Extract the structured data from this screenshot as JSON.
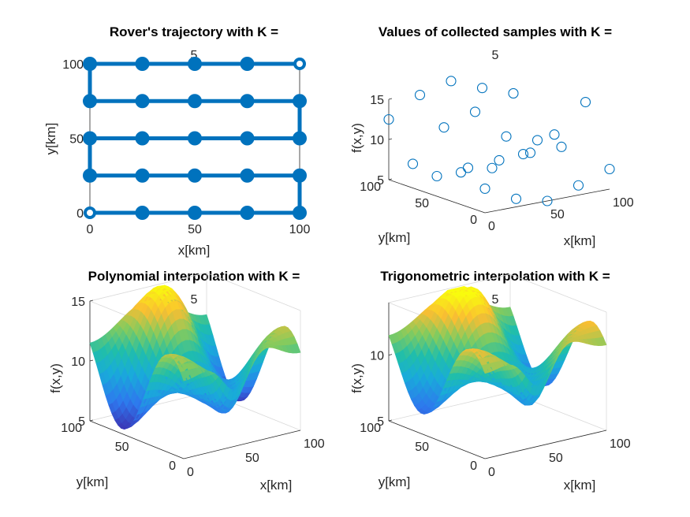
{
  "colors": {
    "series": "#0072BD",
    "surface_low": "#3e26a8",
    "surface_mid": "#20b2aa",
    "surface_high": "#f9fb0e",
    "axis": "#262626",
    "box": "#d9d9d9"
  },
  "chart_data": [
    {
      "type": "line",
      "title": [
        "Rover's trajectory with K =",
        "5"
      ],
      "xlabel": "x[km]",
      "ylabel": "y[km]",
      "xlim": [
        0,
        100
      ],
      "ylim": [
        0,
        100
      ],
      "xticks": [
        "0",
        "50",
        "100"
      ],
      "yticks": [
        "0",
        "50",
        "100"
      ],
      "path": [
        [
          0,
          0
        ],
        [
          25,
          0
        ],
        [
          50,
          0
        ],
        [
          75,
          0
        ],
        [
          100,
          0
        ],
        [
          100,
          25
        ],
        [
          75,
          25
        ],
        [
          50,
          25
        ],
        [
          25,
          25
        ],
        [
          0,
          25
        ],
        [
          0,
          50
        ],
        [
          25,
          50
        ],
        [
          50,
          50
        ],
        [
          75,
          50
        ],
        [
          100,
          50
        ],
        [
          100,
          75
        ],
        [
          75,
          75
        ],
        [
          50,
          75
        ],
        [
          25,
          75
        ],
        [
          0,
          75
        ],
        [
          0,
          100
        ],
        [
          25,
          100
        ],
        [
          50,
          100
        ],
        [
          75,
          100
        ],
        [
          100,
          100
        ]
      ],
      "markers": "filled-circle",
      "open_markers_at": [
        [
          0,
          0
        ],
        [
          100,
          100
        ]
      ]
    },
    {
      "type": "scatter",
      "title": [
        "Values of collected samples with K =",
        "5"
      ],
      "xlabel": "x[km]",
      "ylabel": "y[km]",
      "zlabel": "f(x,y)",
      "xticks": [
        "0",
        "50",
        "100"
      ],
      "yticks": [
        "0",
        "50",
        "100"
      ],
      "zticks": [
        "5",
        "10",
        "15"
      ],
      "zlim": [
        5,
        15
      ],
      "points": [
        [
          0,
          100,
          12.5
        ],
        [
          25,
          100,
          14.8
        ],
        [
          50,
          100,
          15.8
        ],
        [
          75,
          100,
          14.2
        ],
        [
          100,
          100,
          12.8
        ],
        [
          0,
          75,
          8.0
        ],
        [
          25,
          75,
          11.8
        ],
        [
          50,
          75,
          13.0
        ],
        [
          75,
          75,
          9.2
        ],
        [
          100,
          75,
          8.0
        ],
        [
          0,
          50,
          7.5
        ],
        [
          25,
          50,
          7.8
        ],
        [
          50,
          50,
          8.0
        ],
        [
          75,
          50,
          8.2
        ],
        [
          100,
          50,
          8.2
        ],
        [
          0,
          25,
          9.0
        ],
        [
          25,
          25,
          8.8
        ],
        [
          50,
          25,
          9.8
        ],
        [
          75,
          25,
          11.5
        ],
        [
          100,
          25,
          14.8
        ],
        [
          0,
          0,
          8.0
        ],
        [
          25,
          0,
          6.0
        ],
        [
          50,
          0,
          5.0
        ],
        [
          75,
          0,
          6.2
        ],
        [
          100,
          0,
          7.5
        ]
      ]
    },
    {
      "type": "surface",
      "title": [
        "Polynomial interpolation with K =",
        "5"
      ],
      "xlabel": "x[km]",
      "ylabel": "y[km]",
      "zlabel": "f(x,y)",
      "xticks": [
        "0",
        "50",
        "100"
      ],
      "yticks": [
        "0",
        "50",
        "100"
      ],
      "zticks": [
        "5",
        "10",
        "15"
      ],
      "zlim": [
        5,
        15
      ]
    },
    {
      "type": "surface",
      "title": [
        "Trigonometric interpolation with K =",
        "5"
      ],
      "xlabel": "x[km]",
      "ylabel": "y[km]",
      "zlabel": "f(x,y)",
      "xticks": [
        "0",
        "50",
        "100"
      ],
      "yticks": [
        "0",
        "50",
        "100"
      ],
      "zticks": [
        "5",
        "10"
      ],
      "zlim": [
        5,
        14
      ]
    }
  ]
}
